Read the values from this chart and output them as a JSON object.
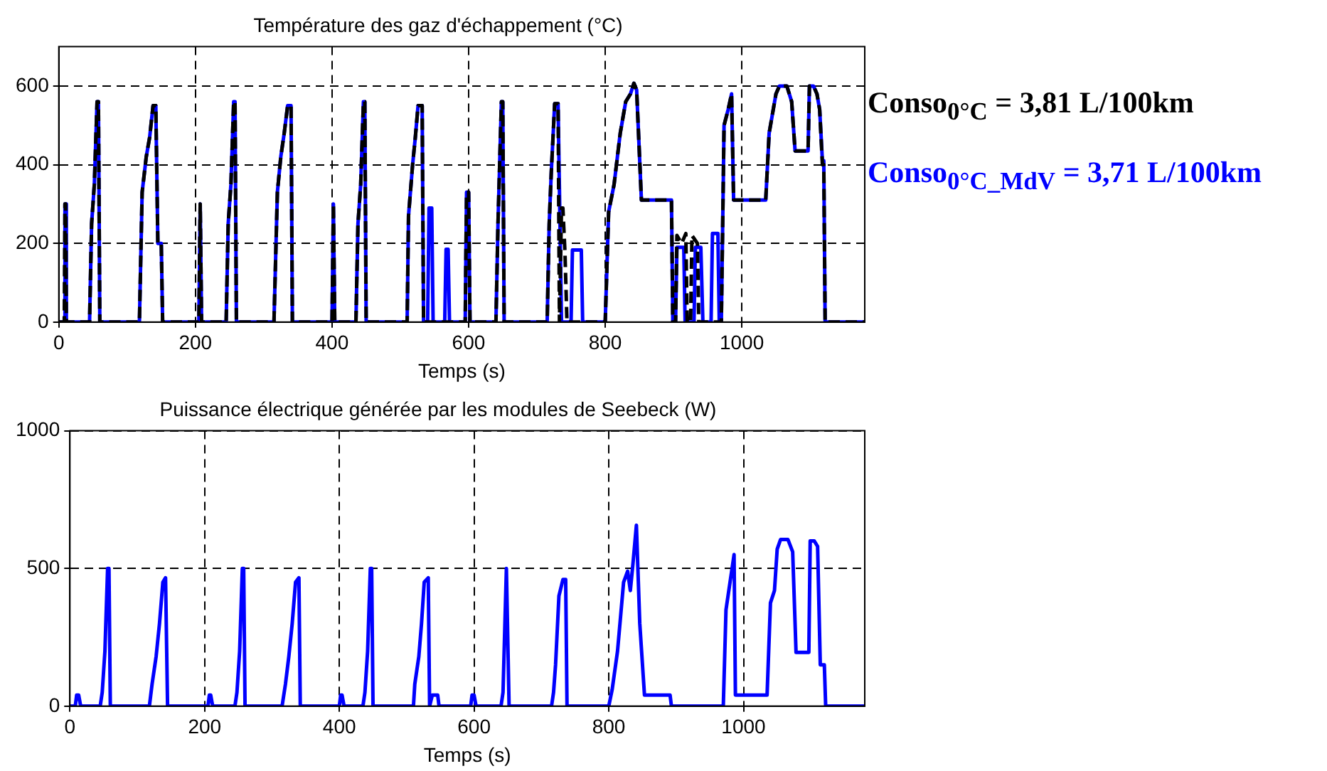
{
  "chart_data": [
    {
      "type": "line",
      "title": "Température des gaz d'échappement (°C)",
      "xlabel": "Temps (s)",
      "xlim": [
        0,
        1180
      ],
      "xticks": [
        0,
        200,
        400,
        600,
        800,
        1000
      ],
      "ylim": [
        0,
        700
      ],
      "yticks": [
        0,
        200,
        400,
        600
      ],
      "grid": true,
      "legend": "right",
      "marker": "none",
      "series": [
        {
          "name": "Conso$_{0°C}$ = 3,81 L/100km",
          "color": "#000000",
          "line_style": "dashed",
          "x": [
            0,
            8,
            9,
            10,
            11,
            45,
            48,
            52,
            56,
            58,
            60,
            118,
            122,
            128,
            133,
            138,
            142,
            145,
            150,
            152,
            205,
            207,
            209,
            245,
            248,
            252,
            256,
            258,
            260,
            315,
            320,
            325,
            330,
            335,
            340,
            342,
            400,
            402,
            404,
            435,
            438,
            442,
            446,
            448,
            450,
            510,
            512,
            518,
            522,
            526,
            532,
            534,
            595,
            597,
            600,
            602,
            640,
            643,
            648,
            650,
            652,
            715,
            718,
            721,
            726,
            731,
            733,
            736,
            738,
            741,
            744,
            800,
            805,
            813,
            822,
            830,
            837,
            842,
            846,
            853,
            897,
            899,
            903,
            905,
            912,
            918,
            920,
            925,
            927,
            935,
            937,
            970,
            974,
            980,
            985,
            988,
            1035,
            1040,
            1046,
            1050,
            1055,
            1066,
            1073,
            1078,
            1097,
            1099,
            1105,
            1110,
            1114,
            1118,
            1120,
            1122,
            1180
          ],
          "values": [
            0,
            0,
            300,
            300,
            0,
            0,
            250,
            350,
            560,
            560,
            0,
            0,
            330,
            420,
            470,
            550,
            550,
            200,
            200,
            0,
            0,
            300,
            0,
            0,
            250,
            350,
            560,
            560,
            0,
            0,
            330,
            420,
            480,
            550,
            550,
            0,
            0,
            300,
            0,
            0,
            250,
            350,
            560,
            560,
            0,
            0,
            270,
            400,
            470,
            550,
            550,
            0,
            0,
            330,
            330,
            0,
            0,
            250,
            560,
            560,
            0,
            0,
            250,
            380,
            555,
            555,
            0,
            290,
            290,
            180,
            0,
            0,
            280,
            350,
            480,
            560,
            580,
            607,
            590,
            310,
            310,
            0,
            0,
            220,
            200,
            225,
            0,
            0,
            220,
            200,
            0,
            0,
            500,
            540,
            580,
            310,
            310,
            480,
            540,
            580,
            600,
            600,
            560,
            435,
            435,
            600,
            600,
            580,
            540,
            400,
            400,
            0,
            0
          ]
        },
        {
          "name": "Conso$_{0°C_MdV}$ = 3,71 L/100km",
          "color": "#0000ff",
          "line_style": "solid",
          "x": [
            0,
            8,
            9,
            10,
            11,
            45,
            48,
            52,
            56,
            58,
            60,
            118,
            122,
            128,
            133,
            138,
            142,
            145,
            150,
            152,
            205,
            207,
            209,
            245,
            248,
            252,
            256,
            258,
            260,
            315,
            320,
            325,
            330,
            335,
            340,
            342,
            400,
            402,
            404,
            435,
            438,
            442,
            446,
            448,
            450,
            510,
            512,
            518,
            522,
            526,
            532,
            534,
            540,
            542,
            546,
            548,
            565,
            567,
            570,
            572,
            595,
            597,
            600,
            602,
            640,
            643,
            648,
            650,
            652,
            715,
            718,
            721,
            726,
            731,
            736,
            750,
            752,
            765,
            767,
            800,
            805,
            813,
            822,
            830,
            837,
            842,
            846,
            853,
            897,
            899,
            903,
            905,
            915,
            917,
            930,
            932,
            940,
            943,
            955,
            957,
            965,
            967,
            970,
            974,
            980,
            985,
            988,
            1035,
            1040,
            1046,
            1050,
            1055,
            1066,
            1073,
            1078,
            1097,
            1099,
            1105,
            1110,
            1114,
            1118,
            1120,
            1122,
            1180
          ],
          "values": [
            0,
            0,
            300,
            300,
            0,
            0,
            250,
            350,
            560,
            560,
            0,
            0,
            330,
            420,
            470,
            550,
            550,
            200,
            200,
            0,
            0,
            300,
            0,
            0,
            250,
            350,
            560,
            560,
            0,
            0,
            330,
            420,
            480,
            550,
            550,
            0,
            0,
            300,
            0,
            0,
            250,
            350,
            560,
            560,
            0,
            0,
            270,
            400,
            470,
            550,
            550,
            0,
            0,
            290,
            290,
            0,
            0,
            185,
            185,
            0,
            0,
            330,
            330,
            0,
            0,
            250,
            560,
            560,
            0,
            0,
            250,
            380,
            555,
            555,
            0,
            0,
            183,
            183,
            0,
            0,
            280,
            350,
            480,
            560,
            580,
            607,
            590,
            310,
            310,
            0,
            0,
            190,
            190,
            0,
            0,
            190,
            190,
            0,
            0,
            225,
            225,
            0,
            0,
            500,
            540,
            580,
            310,
            310,
            480,
            540,
            580,
            600,
            600,
            560,
            435,
            435,
            600,
            600,
            580,
            540,
            410,
            410,
            0,
            0
          ]
        }
      ]
    },
    {
      "type": "line",
      "title": "Puissance électrique générée par les modules de Seebeck (W)",
      "xlabel": "Temps (s)",
      "xlim": [
        0,
        1180
      ],
      "xticks": [
        0,
        200,
        400,
        600,
        800,
        1000
      ],
      "ylim": [
        0,
        1000
      ],
      "yticks": [
        0,
        500,
        1000
      ],
      "grid": true,
      "marker": "none",
      "series": [
        {
          "color": "#0000ff",
          "line_style": "solid",
          "x": [
            0,
            8,
            10,
            13,
            16,
            45,
            48,
            52,
            56,
            58,
            60,
            118,
            122,
            128,
            133,
            138,
            142,
            145,
            205,
            207,
            209,
            212,
            245,
            248,
            252,
            256,
            258,
            260,
            315,
            320,
            325,
            330,
            335,
            340,
            342,
            400,
            402,
            404,
            407,
            435,
            438,
            442,
            446,
            448,
            450,
            510,
            512,
            518,
            522,
            526,
            532,
            534,
            538,
            546,
            548,
            595,
            597,
            600,
            603,
            640,
            643,
            648,
            650,
            652,
            715,
            718,
            721,
            726,
            732,
            736,
            738,
            800,
            805,
            813,
            822,
            828,
            832,
            836,
            841,
            846,
            853,
            891,
            893,
            970,
            974,
            980,
            986,
            988,
            1035,
            1040,
            1046,
            1050,
            1055,
            1066,
            1073,
            1078,
            1097,
            1099,
            1105,
            1110,
            1114,
            1120,
            1122,
            1180
          ],
          "values": [
            0,
            0,
            40,
            40,
            0,
            0,
            50,
            200,
            500,
            500,
            0,
            0,
            80,
            180,
            300,
            450,
            466,
            0,
            0,
            40,
            40,
            0,
            0,
            50,
            200,
            500,
            500,
            0,
            0,
            80,
            180,
            300,
            450,
            466,
            0,
            0,
            40,
            40,
            0,
            0,
            50,
            200,
            500,
            500,
            0,
            0,
            80,
            180,
            300,
            450,
            466,
            0,
            40,
            40,
            0,
            0,
            40,
            40,
            0,
            0,
            50,
            500,
            500,
            0,
            0,
            50,
            150,
            400,
            460,
            460,
            0,
            0,
            60,
            200,
            450,
            490,
            420,
            520,
            657,
            300,
            40,
            40,
            0,
            0,
            350,
            450,
            550,
            40,
            40,
            375,
            420,
            570,
            605,
            605,
            560,
            195,
            195,
            600,
            600,
            580,
            150,
            150,
            0,
            0
          ]
        }
      ]
    }
  ]
}
